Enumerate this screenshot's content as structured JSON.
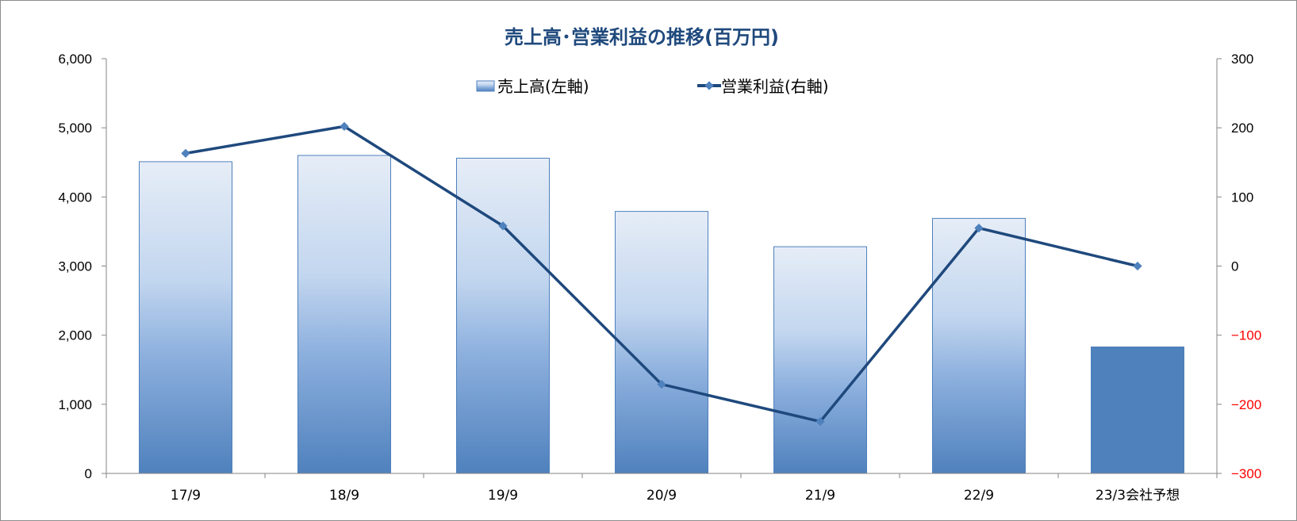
{
  "chart_data": {
    "type": "bar+line",
    "title": "売上高･営業利益の推移(百万円)",
    "categories": [
      "17/9",
      "18/9",
      "19/9",
      "20/9",
      "21/9",
      "22/9",
      "23/3会社予想"
    ],
    "series": [
      {
        "name": "売上高(左軸)",
        "type": "bar",
        "axis": "left",
        "values": [
          4510,
          4600,
          4560,
          3790,
          3280,
          3690,
          1830
        ]
      },
      {
        "name": "営業利益(右軸)",
        "type": "line",
        "axis": "right",
        "values": [
          163,
          202,
          58,
          -171,
          -225,
          55,
          0
        ]
      }
    ],
    "y_left": {
      "min": 0,
      "max": 6000,
      "ticks": [
        0,
        1000,
        2000,
        3000,
        4000,
        5000,
        6000
      ],
      "tick_labels": [
        "0",
        "1,000",
        "2,000",
        "3,000",
        "4,000",
        "5,000",
        "6,000"
      ]
    },
    "y_right": {
      "min": -300,
      "max": 300,
      "ticks": [
        -300,
        -200,
        -100,
        0,
        100,
        200,
        300
      ],
      "tick_labels": [
        "−300",
        "−200",
        "−100",
        "0",
        "100",
        "200",
        "300"
      ]
    },
    "legend_position": "top-center",
    "grid": false,
    "colors": {
      "title": "#1f497d",
      "bar_gradient_top": "#e6edf7",
      "bar_gradient_mid": "#c2d6ef",
      "bar_gradient_low": "#8db0de",
      "bar_gradient_bottom": "#4f81bd",
      "bar_solid": "#4f81bd",
      "bar_edge": "#4f81bd",
      "line": "#1f497d",
      "marker": "#4f81bd",
      "negative_tick": "#ff0000",
      "axis": "#868686"
    }
  }
}
